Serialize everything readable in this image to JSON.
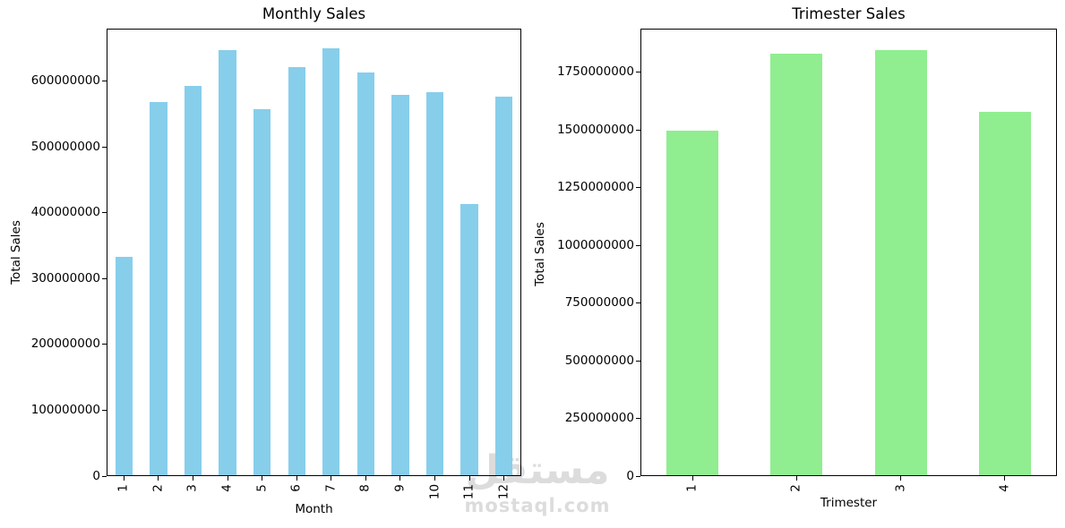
{
  "figure": {
    "background": "#ffffff"
  },
  "watermark": {
    "logo_text": "مستقل",
    "site_text": "mostaql.com",
    "color": "#dcdcdc"
  },
  "chart_data": [
    {
      "type": "bar",
      "title": "Monthly Sales",
      "xlabel": "Month",
      "ylabel": "Total Sales",
      "categories": [
        "1",
        "2",
        "3",
        "4",
        "5",
        "6",
        "7",
        "8",
        "9",
        "10",
        "11",
        "12"
      ],
      "values": [
        333000000,
        568000000,
        593000000,
        647000000,
        557000000,
        622000000,
        650000000,
        613000000,
        579000000,
        584000000,
        414000000,
        577000000
      ],
      "bar_color": "#87CEEB",
      "ylim": [
        0,
        680000000
      ],
      "yticks": [
        0,
        100000000,
        200000000,
        300000000,
        400000000,
        500000000,
        600000000
      ],
      "ytick_labels": [
        "0",
        "100000000",
        "200000000",
        "300000000",
        "400000000",
        "500000000",
        "600000000"
      ],
      "x_tick_rotation": 90,
      "grid": false,
      "legend": false
    },
    {
      "type": "bar",
      "title": "Trimester Sales",
      "xlabel": "Trimester",
      "ylabel": "Total Sales",
      "categories": [
        "1",
        "2",
        "3",
        "4"
      ],
      "values": [
        1496000000,
        1830000000,
        1846000000,
        1578000000
      ],
      "bar_color": "#90EE90",
      "ylim": [
        0,
        1940000000
      ],
      "yticks": [
        0,
        250000000,
        500000000,
        750000000,
        1000000000,
        1250000000,
        1500000000,
        1750000000
      ],
      "ytick_labels": [
        "0",
        "250000000",
        "500000000",
        "750000000",
        "1000000000",
        "1250000000",
        "1500000000",
        "1750000000"
      ],
      "x_tick_rotation": 90,
      "grid": false,
      "legend": false
    }
  ]
}
